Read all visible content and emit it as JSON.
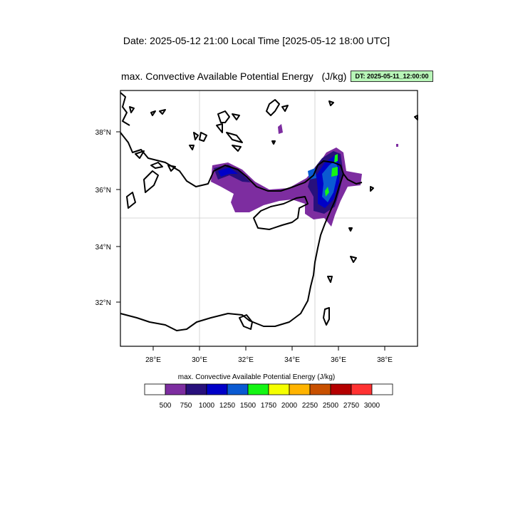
{
  "header": {
    "date_line": "Date: 2025-05-12  21:00 Local Time [2025-05-12  18:00 UTC]"
  },
  "plot": {
    "title": "max. Convective Available Potential Energy   (J/kg)",
    "dt_badge": "DT: 2025-05-11_12:00:00",
    "lon_ticks": [
      "28°E",
      "30°E",
      "32°E",
      "34°E",
      "36°E",
      "38°E"
    ],
    "lat_ticks": [
      "38°N",
      "36°N",
      "34°N",
      "32°N"
    ]
  },
  "colorbar": {
    "title": "max. Convective Available Potential Energy  (J/kg)",
    "labels": [
      "500",
      "750",
      "1000",
      "1250",
      "1500",
      "1750",
      "2000",
      "2250",
      "2500",
      "2750",
      "3000"
    ],
    "colors": [
      "#ffffff",
      "#7d2da0",
      "#28107c",
      "#0000c8",
      "#0a5ad2",
      "#14f514",
      "#f5ff00",
      "#ffb400",
      "#c85000",
      "#b40000",
      "#ff3232",
      "#ffffff"
    ]
  }
}
